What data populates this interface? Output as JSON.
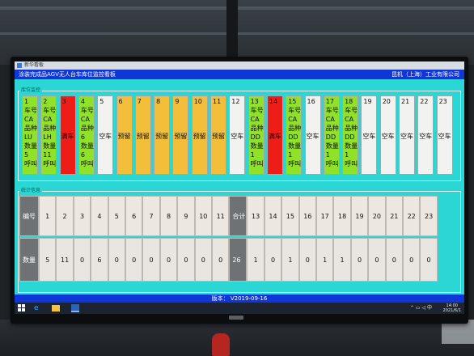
{
  "window": {
    "title": "新华看板"
  },
  "header": {
    "left": "涂装完成品AGV无人台车库位监控看板",
    "right": "昆机（上海）工业有限公司"
  },
  "slots_panel": {
    "label": "库位监控"
  },
  "slots": [
    {
      "no": "1",
      "color": "green",
      "lines": [
        "车号",
        "CA",
        "品种",
        "LU",
        "数量",
        "5",
        "呼叫"
      ]
    },
    {
      "no": "2",
      "color": "green",
      "lines": [
        "车号",
        "CA",
        "品种",
        "LH",
        "数量",
        "11",
        "呼叫"
      ]
    },
    {
      "no": "3",
      "color": "red",
      "status": "满车"
    },
    {
      "no": "4",
      "color": "green",
      "lines": [
        "车号",
        "CA",
        "品种",
        "6",
        "数量",
        "6",
        "呼叫"
      ]
    },
    {
      "no": "5",
      "color": "white",
      "status": "空车"
    },
    {
      "no": "6",
      "color": "orange",
      "status": "预留"
    },
    {
      "no": "7",
      "color": "orange",
      "status": "预留"
    },
    {
      "no": "8",
      "color": "orange",
      "status": "预留"
    },
    {
      "no": "9",
      "color": "orange",
      "status": "预留"
    },
    {
      "no": "10",
      "color": "orange",
      "status": "预留"
    },
    {
      "no": "11",
      "color": "orange",
      "status": "预留"
    },
    {
      "no": "12",
      "color": "white",
      "status": "空车"
    },
    {
      "no": "13",
      "color": "green",
      "lines": [
        "车号",
        "CA",
        "品种",
        "DD",
        "数量",
        "1",
        "呼叫"
      ]
    },
    {
      "no": "14",
      "color": "red",
      "status": "满车"
    },
    {
      "no": "15",
      "color": "green",
      "lines": [
        "车号",
        "CA",
        "品种",
        "DD",
        "数量",
        "1",
        "呼叫"
      ]
    },
    {
      "no": "16",
      "color": "white",
      "status": "空车"
    },
    {
      "no": "17",
      "color": "green",
      "lines": [
        "车号",
        "CA",
        "品种",
        "DD",
        "数量",
        "1",
        "呼叫"
      ]
    },
    {
      "no": "18",
      "color": "green",
      "lines": [
        "车号",
        "CA",
        "品种",
        "DD",
        "数量",
        "1",
        "呼叫"
      ]
    },
    {
      "no": "19",
      "color": "white",
      "status": "空车"
    },
    {
      "no": "20",
      "color": "white",
      "status": "空车"
    },
    {
      "no": "21",
      "color": "white",
      "status": "空车"
    },
    {
      "no": "22",
      "color": "white",
      "status": "空车"
    },
    {
      "no": "23",
      "color": "white",
      "status": "空车"
    }
  ],
  "stats_panel": {
    "label": "统计信息"
  },
  "stats": {
    "row1_label": "编号",
    "row2_label": "数量",
    "total_label": "合计",
    "total_value": "26",
    "left_numbers": [
      "1",
      "2",
      "3",
      "4",
      "5",
      "6",
      "7",
      "8",
      "9",
      "10",
      "11"
    ],
    "left_values": [
      "5",
      "11",
      "0",
      "6",
      "0",
      "0",
      "0",
      "0",
      "0",
      "0",
      "0"
    ],
    "right_numbers": [
      "13",
      "14",
      "15",
      "16",
      "17",
      "18",
      "19",
      "20",
      "21",
      "22",
      "23"
    ],
    "right_values": [
      "1",
      "0",
      "1",
      "0",
      "1",
      "1",
      "0",
      "0",
      "0",
      "0",
      "0"
    ]
  },
  "footer": {
    "version": "版本：   V2019-09-16"
  },
  "taskbar": {
    "tray": "⌃ ▭ ◁ 中",
    "time": "14:00",
    "date": "2021/6/1"
  },
  "colors": {
    "screen_bg": "#2bd7d4",
    "header_bg": "#1136d6",
    "green": "#8fe12a",
    "red": "#ee1d17",
    "orange": "#f3be3a",
    "white": "#f2f2f0"
  }
}
